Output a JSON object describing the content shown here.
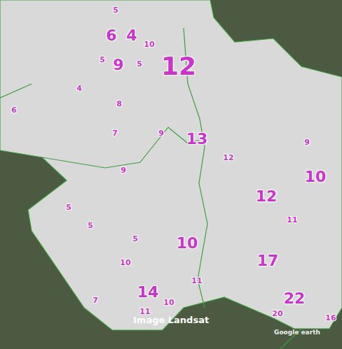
{
  "chart_data": {
    "type": "scatter",
    "data_labels": true,
    "tick_labels": false,
    "grid": false,
    "xlim": [
      0,
      488
    ],
    "ylim": [
      499,
      0
    ],
    "annotations": [
      "Image Landsat",
      "Google earth"
    ],
    "series": [
      {
        "marker": "small",
        "color": "#cc33cc",
        "x": [
          165,
          213,
          146,
          199,
          113,
          170,
          20,
          164,
          230,
          326,
          438,
          176,
          98,
          129,
          193,
          417,
          179,
          281,
          136,
          207,
          241,
          396,
          472
        ],
        "y": [
          15,
          64,
          86,
          92,
          127,
          149,
          158,
          191,
          191,
          226,
          204,
          244,
          297,
          323,
          342,
          315,
          376,
          402,
          430,
          446,
          433,
          449,
          455
        ],
        "values": [
          5,
          10,
          5,
          5,
          4,
          8,
          6,
          7,
          9,
          12,
          9,
          9,
          5,
          5,
          5,
          11,
          10,
          11,
          7,
          11,
          10,
          20,
          16
        ]
      },
      {
        "marker": "large",
        "color": "#cc33cc",
        "x": [
          159,
          188,
          169,
          281,
          450,
          380,
          267,
          382,
          211,
          420
        ],
        "y": [
          52,
          52,
          94,
          200,
          254,
          282,
          349,
          374,
          419,
          428
        ],
        "values": [
          6,
          4,
          9,
          13,
          10,
          12,
          10,
          17,
          14,
          22
        ]
      },
      {
        "marker": "huge",
        "color": "#cc33cc",
        "x": [
          255
        ],
        "y": [
          98
        ],
        "values": [
          12
        ]
      }
    ]
  }
}
